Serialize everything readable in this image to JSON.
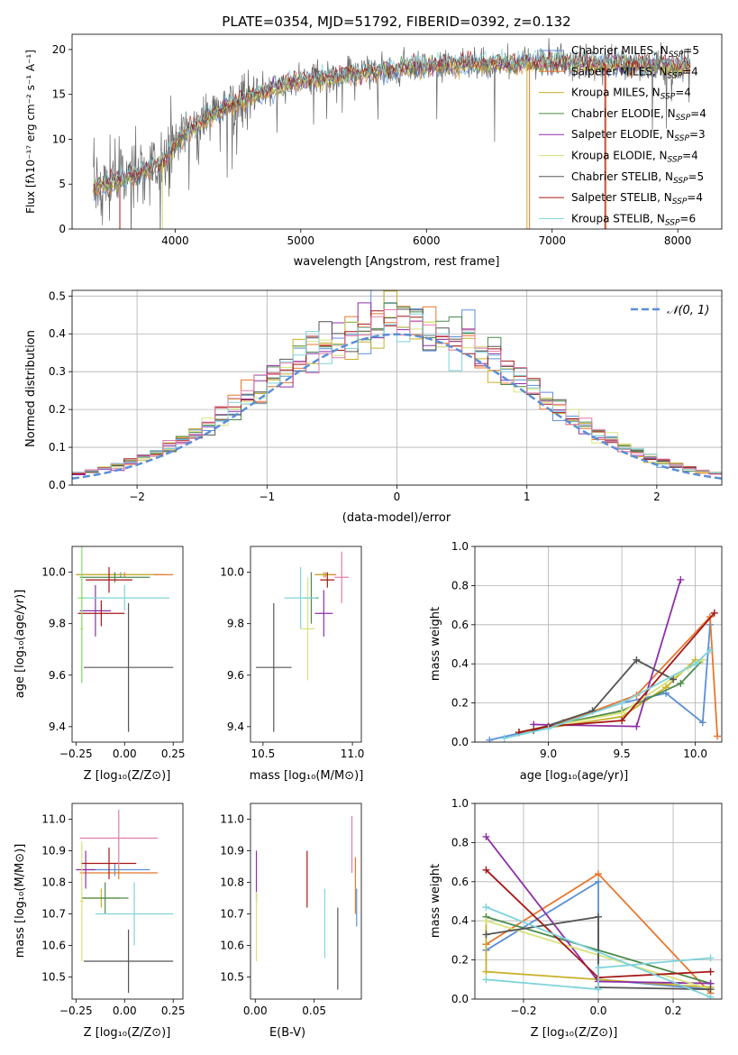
{
  "colors": {
    "chabrier_miles": "#5b8fd6",
    "salpeter_miles": "#e8772e",
    "kroupa_miles": "#c9b02a",
    "chabrier_elodie": "#4c8a4c",
    "salpeter_elodie": "#8e2fa8",
    "kroupa_elodie": "#d8e27a",
    "chabrier_stelib": "#555555",
    "salpeter_stelib": "#a61717",
    "kroupa_stelib": "#7fd3dc",
    "gauss": "#5b8fd6",
    "extra_pink": "#e37ba8",
    "extra_green": "#8bdc7a"
  },
  "chart_data": [
    {
      "id": "spectrum",
      "type": "line",
      "title": "PLATE=0354, MJD=51792, FIBERID=0392, z=0.132",
      "xlabel": "wavelength [Angstrom, rest frame]",
      "ylabel": "Flux [fλ10⁻¹⁷ erg cm⁻² s⁻¹ A⁻¹]",
      "xlim": [
        3180,
        8350
      ],
      "ylim": [
        0,
        21.7
      ],
      "xticks": [
        4000,
        5000,
        6000,
        7000,
        8000
      ],
      "yticks": [
        0,
        5,
        10,
        15,
        20
      ],
      "continuum": {
        "x": [
          3350,
          3500,
          3700,
          3900,
          4000,
          4200,
          4500,
          4800,
          5000,
          5300,
          5600,
          6000,
          6400,
          6800,
          7200,
          7600,
          8000,
          8100
        ],
        "y": [
          4.5,
          5.2,
          6.0,
          7.5,
          9.5,
          12.0,
          14.2,
          15.8,
          16.5,
          17.1,
          17.6,
          18.2,
          18.4,
          18.5,
          18.5,
          18.3,
          18.2,
          18.1
        ]
      },
      "legend": [
        {
          "label": "Chabrier MILES, N",
          "sub": "SSP",
          "tail": "=5",
          "color_key": "chabrier_miles"
        },
        {
          "label": "Salpeter MILES, N",
          "sub": "SSP",
          "tail": "=4",
          "color_key": "salpeter_miles"
        },
        {
          "label": "Kroupa MILES, N",
          "sub": "SSP",
          "tail": "=4",
          "color_key": "kroupa_miles"
        },
        {
          "label": "Chabrier ELODIE, N",
          "sub": "SSP",
          "tail": "=4",
          "color_key": "chabrier_elodie"
        },
        {
          "label": "Salpeter ELODIE, N",
          "sub": "SSP",
          "tail": "=3",
          "color_key": "salpeter_elodie"
        },
        {
          "label": "Kroupa ELODIE, N",
          "sub": "SSP",
          "tail": "=4",
          "color_key": "kroupa_elodie"
        },
        {
          "label": "Chabrier STELIB, N",
          "sub": "SSP",
          "tail": "=5",
          "color_key": "chabrier_stelib"
        },
        {
          "label": "Salpeter STELIB, N",
          "sub": "SSP",
          "tail": "=4",
          "color_key": "salpeter_stelib"
        },
        {
          "label": "Kroupa STELIB, N",
          "sub": "SSP",
          "tail": "=6",
          "color_key": "kroupa_stelib"
        }
      ],
      "dropouts": [
        {
          "x": 3560,
          "color_key": "salpeter_stelib"
        },
        {
          "x": 3900,
          "color_key": "kroupa_elodie"
        },
        {
          "x": 6800,
          "color_key": "kroupa_miles"
        },
        {
          "x": 6820,
          "color_key": "salpeter_miles"
        },
        {
          "x": 7420,
          "color_key": "salpeter_stelib"
        },
        {
          "x": 7430,
          "color_key": "salpeter_miles"
        }
      ],
      "legend_placement": "right"
    },
    {
      "id": "residuals",
      "type": "line",
      "xlabel": "(data-model)/error",
      "ylabel": "Normed distribution",
      "xlim": [
        -2.5,
        2.5
      ],
      "ylim": [
        0,
        0.515
      ],
      "xticks": [
        -2,
        -1,
        0,
        1,
        2
      ],
      "xticklabels": [
        "−2",
        "−1",
        "0",
        "1",
        "2"
      ],
      "yticks": [
        0.0,
        0.1,
        0.2,
        0.3,
        0.4,
        0.5
      ],
      "yticklabels": [
        "0.0",
        "0.1",
        "0.2",
        "0.3",
        "0.4",
        "0.5"
      ],
      "grid": true,
      "bin_width": 0.1,
      "legend": {
        "label": "𝒩(0, 1)",
        "color_key": "gauss",
        "placement": "top-right"
      }
    },
    {
      "id": "age_vs_Z",
      "type": "scatter",
      "xlabel": "Z [log₁₀(Z/Z⊙)]",
      "ylabel": "age  [log₁₀(age/yr)]",
      "xlim": [
        -0.27,
        0.3
      ],
      "ylim": [
        9.34,
        10.1
      ],
      "xticks": [
        -0.25,
        0.0,
        0.25
      ],
      "xticklabels": [
        "−0.25",
        "0.00",
        "0.25"
      ],
      "yticks": [
        9.4,
        9.6,
        9.8,
        10.0
      ],
      "yticklabels": [
        "9.4",
        "9.6",
        "9.8",
        "10.0"
      ],
      "points": [
        {
          "x": -0.02,
          "xerr": 0.22,
          "y": 9.99,
          "yerr": 0.01,
          "color_key": "chabrier_miles"
        },
        {
          "x": 0.0,
          "xerr": 0.25,
          "y": 9.99,
          "yerr": 0.01,
          "color_key": "salpeter_miles"
        },
        {
          "x": -0.05,
          "xerr": 0.2,
          "y": 9.99,
          "yerr": 0.01,
          "color_key": "kroupa_miles"
        },
        {
          "x": -0.05,
          "xerr": 0.18,
          "y": 9.98,
          "yerr": 0.02,
          "color_key": "chabrier_elodie"
        },
        {
          "x": -0.15,
          "xerr": 0.08,
          "y": 9.85,
          "yerr": 0.1,
          "color_key": "salpeter_elodie"
        },
        {
          "x": -0.22,
          "xerr": 0.01,
          "y": 9.78,
          "yerr": 0.21,
          "color_key": "kroupa_elodie"
        },
        {
          "x": 0.02,
          "xerr": 0.23,
          "y": 9.63,
          "yerr": 0.25,
          "color_key": "chabrier_stelib"
        },
        {
          "x": -0.08,
          "xerr": 0.12,
          "y": 9.97,
          "yerr": 0.05,
          "color_key": "salpeter_stelib"
        },
        {
          "x": 0.0,
          "xerr": 0.23,
          "y": 9.9,
          "yerr": 0.05,
          "color_key": "kroupa_stelib"
        },
        {
          "x": -0.12,
          "xerr": 0.12,
          "y": 9.84,
          "yerr": 0.05,
          "color_key": "salpeter_stelib"
        },
        {
          "x": -0.22,
          "xerr": 0.02,
          "y": 9.9,
          "yerr": 0.33,
          "color_key": "extra_green"
        }
      ]
    },
    {
      "id": "age_vs_mass",
      "type": "scatter",
      "xlabel": "mass [log₁₀(M/M⊙)]",
      "xlim": [
        10.43,
        11.05
      ],
      "ylim": [
        9.34,
        10.1
      ],
      "xticks": [
        10.5,
        11.0
      ],
      "xticklabels": [
        "10.5",
        "11.0"
      ],
      "yticks": [
        9.4,
        9.6,
        9.8,
        10.0
      ],
      "yticklabels": [
        "9.4",
        "9.6",
        "9.8",
        "10.0"
      ],
      "points": [
        {
          "x": 10.84,
          "xerr": 0.04,
          "y": 9.99,
          "yerr": 0.01,
          "color_key": "chabrier_miles"
        },
        {
          "x": 10.85,
          "xerr": 0.06,
          "y": 9.99,
          "yerr": 0.01,
          "color_key": "salpeter_miles"
        },
        {
          "x": 10.84,
          "xerr": 0.04,
          "y": 9.99,
          "yerr": 0.01,
          "color_key": "kroupa_miles"
        },
        {
          "x": 10.77,
          "xerr": 0.04,
          "y": 9.9,
          "yerr": 0.1,
          "color_key": "chabrier_elodie"
        },
        {
          "x": 10.84,
          "xerr": 0.05,
          "y": 9.84,
          "yerr": 0.09,
          "color_key": "salpeter_elodie"
        },
        {
          "x": 10.75,
          "xerr": 0.04,
          "y": 9.78,
          "yerr": 0.2,
          "color_key": "kroupa_elodie"
        },
        {
          "x": 10.56,
          "xerr": 0.1,
          "y": 9.63,
          "yerr": 0.25,
          "color_key": "chabrier_stelib"
        },
        {
          "x": 10.86,
          "xerr": 0.04,
          "y": 9.97,
          "yerr": 0.03,
          "color_key": "salpeter_stelib"
        },
        {
          "x": 10.71,
          "xerr": 0.09,
          "y": 9.9,
          "yerr": 0.12,
          "color_key": "kroupa_stelib"
        },
        {
          "x": 10.94,
          "xerr": 0.04,
          "y": 9.98,
          "yerr": 0.1,
          "color_key": "extra_pink"
        }
      ]
    },
    {
      "id": "mass_weight_vs_age",
      "type": "line",
      "xlabel": "age  [log₁₀(age/yr)]",
      "ylabel": "mass weight",
      "xlim": [
        8.5,
        10.18
      ],
      "ylim": [
        0,
        1.0
      ],
      "xticks": [
        9.0,
        9.5,
        10.0
      ],
      "xticklabels": [
        "9.0",
        "9.5",
        "10.0"
      ],
      "yticks": [
        0.0,
        0.2,
        0.4,
        0.6,
        0.8,
        1.0
      ],
      "yticklabels": [
        "0.0",
        "0.2",
        "0.4",
        "0.6",
        "0.8",
        "1.0"
      ],
      "grid": true,
      "series": [
        {
          "color_key": "chabrier_miles",
          "x": [
            8.6,
            9.0,
            9.5,
            9.8,
            10.05,
            10.1
          ],
          "y": [
            0.01,
            0.08,
            0.2,
            0.25,
            0.1,
            0.6
          ]
        },
        {
          "color_key": "salpeter_miles",
          "x": [
            8.8,
            9.1,
            9.6,
            10.1,
            10.15
          ],
          "y": [
            0.05,
            0.1,
            0.24,
            0.64,
            0.03
          ]
        },
        {
          "color_key": "kroupa_miles",
          "x": [
            8.8,
            9.5,
            9.8,
            10.0
          ],
          "y": [
            0.05,
            0.13,
            0.28,
            0.42
          ]
        },
        {
          "color_key": "chabrier_elodie",
          "x": [
            8.8,
            9.5,
            9.9,
            10.05
          ],
          "y": [
            0.05,
            0.16,
            0.3,
            0.42
          ]
        },
        {
          "color_key": "salpeter_elodie",
          "x": [
            8.9,
            9.6,
            9.9
          ],
          "y": [
            0.09,
            0.08,
            0.83
          ]
        },
        {
          "color_key": "kroupa_elodie",
          "x": [
            8.8,
            9.5,
            9.95,
            10.05
          ],
          "y": [
            0.05,
            0.15,
            0.38,
            0.42
          ]
        },
        {
          "color_key": "chabrier_stelib",
          "x": [
            8.9,
            9.3,
            9.6,
            9.85
          ],
          "y": [
            0.06,
            0.16,
            0.42,
            0.32
          ]
        },
        {
          "color_key": "salpeter_stelib",
          "x": [
            8.8,
            9.0,
            9.5,
            10.13
          ],
          "y": [
            0.05,
            0.08,
            0.11,
            0.66
          ]
        },
        {
          "color_key": "kroupa_stelib",
          "x": [
            8.7,
            9.0,
            9.5,
            10.0,
            10.1
          ],
          "y": [
            0.02,
            0.07,
            0.2,
            0.4,
            0.47
          ]
        }
      ]
    },
    {
      "id": "mass_vs_Z",
      "type": "scatter",
      "xlabel": "Z [log₁₀(Z/Z⊙)]",
      "ylabel": "mass [log₁₀(M/M⊙)]",
      "xlim": [
        -0.27,
        0.3
      ],
      "ylim": [
        10.43,
        11.05
      ],
      "xticks": [
        -0.25,
        0.0,
        0.25
      ],
      "xticklabels": [
        "−0.25",
        "0.00",
        "0.25"
      ],
      "yticks": [
        10.5,
        10.6,
        10.7,
        10.8,
        10.9,
        11.0
      ],
      "yticklabels": [
        "10.5",
        "10.6",
        "10.7",
        "10.8",
        "10.9",
        "11.0"
      ],
      "points": [
        {
          "x": -0.05,
          "xerr": 0.18,
          "y": 10.84,
          "yerr": 0.02,
          "color_key": "chabrier_miles"
        },
        {
          "x": -0.03,
          "xerr": 0.2,
          "y": 10.83,
          "yerr": 0.02,
          "color_key": "salpeter_miles"
        },
        {
          "x": -0.12,
          "xerr": 0.1,
          "y": 10.75,
          "yerr": 0.03,
          "color_key": "kroupa_miles"
        },
        {
          "x": -0.1,
          "xerr": 0.12,
          "y": 10.75,
          "yerr": 0.05,
          "color_key": "chabrier_elodie"
        },
        {
          "x": -0.2,
          "xerr": 0.05,
          "y": 10.84,
          "yerr": 0.06,
          "color_key": "salpeter_elodie"
        },
        {
          "x": -0.22,
          "xerr": 0.01,
          "y": 10.74,
          "yerr": 0.19,
          "color_key": "kroupa_elodie"
        },
        {
          "x": 0.02,
          "xerr": 0.23,
          "y": 10.55,
          "yerr": 0.1,
          "color_key": "chabrier_stelib"
        },
        {
          "x": -0.08,
          "xerr": 0.14,
          "y": 10.86,
          "yerr": 0.05,
          "color_key": "salpeter_stelib"
        },
        {
          "x": 0.05,
          "xerr": 0.2,
          "y": 10.7,
          "yerr": 0.1,
          "color_key": "kroupa_stelib"
        },
        {
          "x": -0.03,
          "xerr": 0.2,
          "y": 10.94,
          "yerr": 0.09,
          "color_key": "extra_pink"
        }
      ]
    },
    {
      "id": "mass_vs_ebv",
      "type": "scatter",
      "xlabel": "E(B-V)",
      "xlim": [
        -0.004,
        0.09
      ],
      "ylim": [
        10.43,
        11.05
      ],
      "xticks": [
        0.0,
        0.05
      ],
      "xticklabels": [
        "0.00",
        "0.05"
      ],
      "yticks": [
        10.5,
        10.6,
        10.7,
        10.8,
        10.9,
        11.0
      ],
      "yticklabels": [
        "10.5",
        "10.6",
        "10.7",
        "10.8",
        "10.9",
        "11.0"
      ],
      "points": [
        {
          "x": 0.001,
          "xerr": 0.0,
          "y": 10.82,
          "yerr": 0.08,
          "color_key": "salpeter_elodie"
        },
        {
          "x": 0.001,
          "xerr": 0.0,
          "y": 10.66,
          "yerr": 0.11,
          "color_key": "kroupa_elodie"
        },
        {
          "x": 0.044,
          "xerr": 0.0,
          "y": 10.81,
          "yerr": 0.09,
          "color_key": "salpeter_stelib"
        },
        {
          "x": 0.059,
          "xerr": 0.0,
          "y": 10.67,
          "yerr": 0.11,
          "color_key": "kroupa_stelib"
        },
        {
          "x": 0.07,
          "xerr": 0.0,
          "y": 10.59,
          "yerr": 0.13,
          "color_key": "chabrier_stelib"
        },
        {
          "x": 0.082,
          "xerr": 0.0,
          "y": 10.92,
          "yerr": 0.09,
          "color_key": "extra_pink"
        },
        {
          "x": 0.085,
          "xerr": 0.0,
          "y": 10.79,
          "yerr": 0.09,
          "color_key": "salpeter_miles"
        },
        {
          "x": 0.086,
          "xerr": 0.0,
          "y": 10.72,
          "yerr": 0.06,
          "color_key": "chabrier_miles"
        }
      ]
    },
    {
      "id": "mass_weight_vs_Z",
      "type": "line",
      "xlabel": "Z [log₁₀(Z/Z⊙)]",
      "ylabel": "mass weight",
      "xlim": [
        -0.33,
        0.33
      ],
      "ylim": [
        0,
        1.0
      ],
      "xticks": [
        -0.2,
        0.0,
        0.2
      ],
      "xticklabels": [
        "−0.2",
        "0.0",
        "0.2"
      ],
      "yticks": [
        0.0,
        0.2,
        0.4,
        0.6,
        0.8,
        1.0
      ],
      "yticklabels": [
        "0.0",
        "0.2",
        "0.4",
        "0.6",
        "0.8",
        "1.0"
      ],
      "grid": true,
      "series": [
        {
          "color_key": "chabrier_miles",
          "x": [
            -0.3,
            0.0,
            0.0,
            0.3
          ],
          "y": [
            0.25,
            0.6,
            0.1,
            0.05
          ]
        },
        {
          "color_key": "salpeter_miles",
          "x": [
            -0.3,
            0.0,
            0.3
          ],
          "y": [
            0.28,
            0.64,
            0.03
          ]
        },
        {
          "color_key": "kroupa_miles",
          "x": [
            -0.3,
            -0.3,
            0.3
          ],
          "y": [
            0.42,
            0.14,
            0.06
          ]
        },
        {
          "color_key": "chabrier_elodie",
          "x": [
            -0.3,
            0.3
          ],
          "y": [
            0.42,
            0.08
          ]
        },
        {
          "color_key": "salpeter_elodie",
          "x": [
            -0.3,
            0.0,
            0.3
          ],
          "y": [
            0.83,
            0.09,
            0.08
          ]
        },
        {
          "color_key": "kroupa_elodie",
          "x": [
            -0.3,
            0.3
          ],
          "y": [
            0.4,
            0.05
          ]
        },
        {
          "color_key": "chabrier_stelib",
          "x": [
            -0.3,
            0.0,
            0.0,
            0.3
          ],
          "y": [
            0.33,
            0.42,
            0.06,
            0.05
          ]
        },
        {
          "color_key": "salpeter_stelib",
          "x": [
            -0.3,
            0.0,
            0.3
          ],
          "y": [
            0.66,
            0.11,
            0.14
          ]
        },
        {
          "color_key": "kroupa_stelib",
          "x": [
            -0.3,
            0.0,
            0.0,
            0.3
          ],
          "y": [
            0.1,
            0.05,
            0.16,
            0.21
          ]
        },
        {
          "color_key": "kroupa_stelib",
          "x": [
            -0.3,
            0.3
          ],
          "y": [
            0.47,
            0.01
          ]
        }
      ]
    }
  ]
}
